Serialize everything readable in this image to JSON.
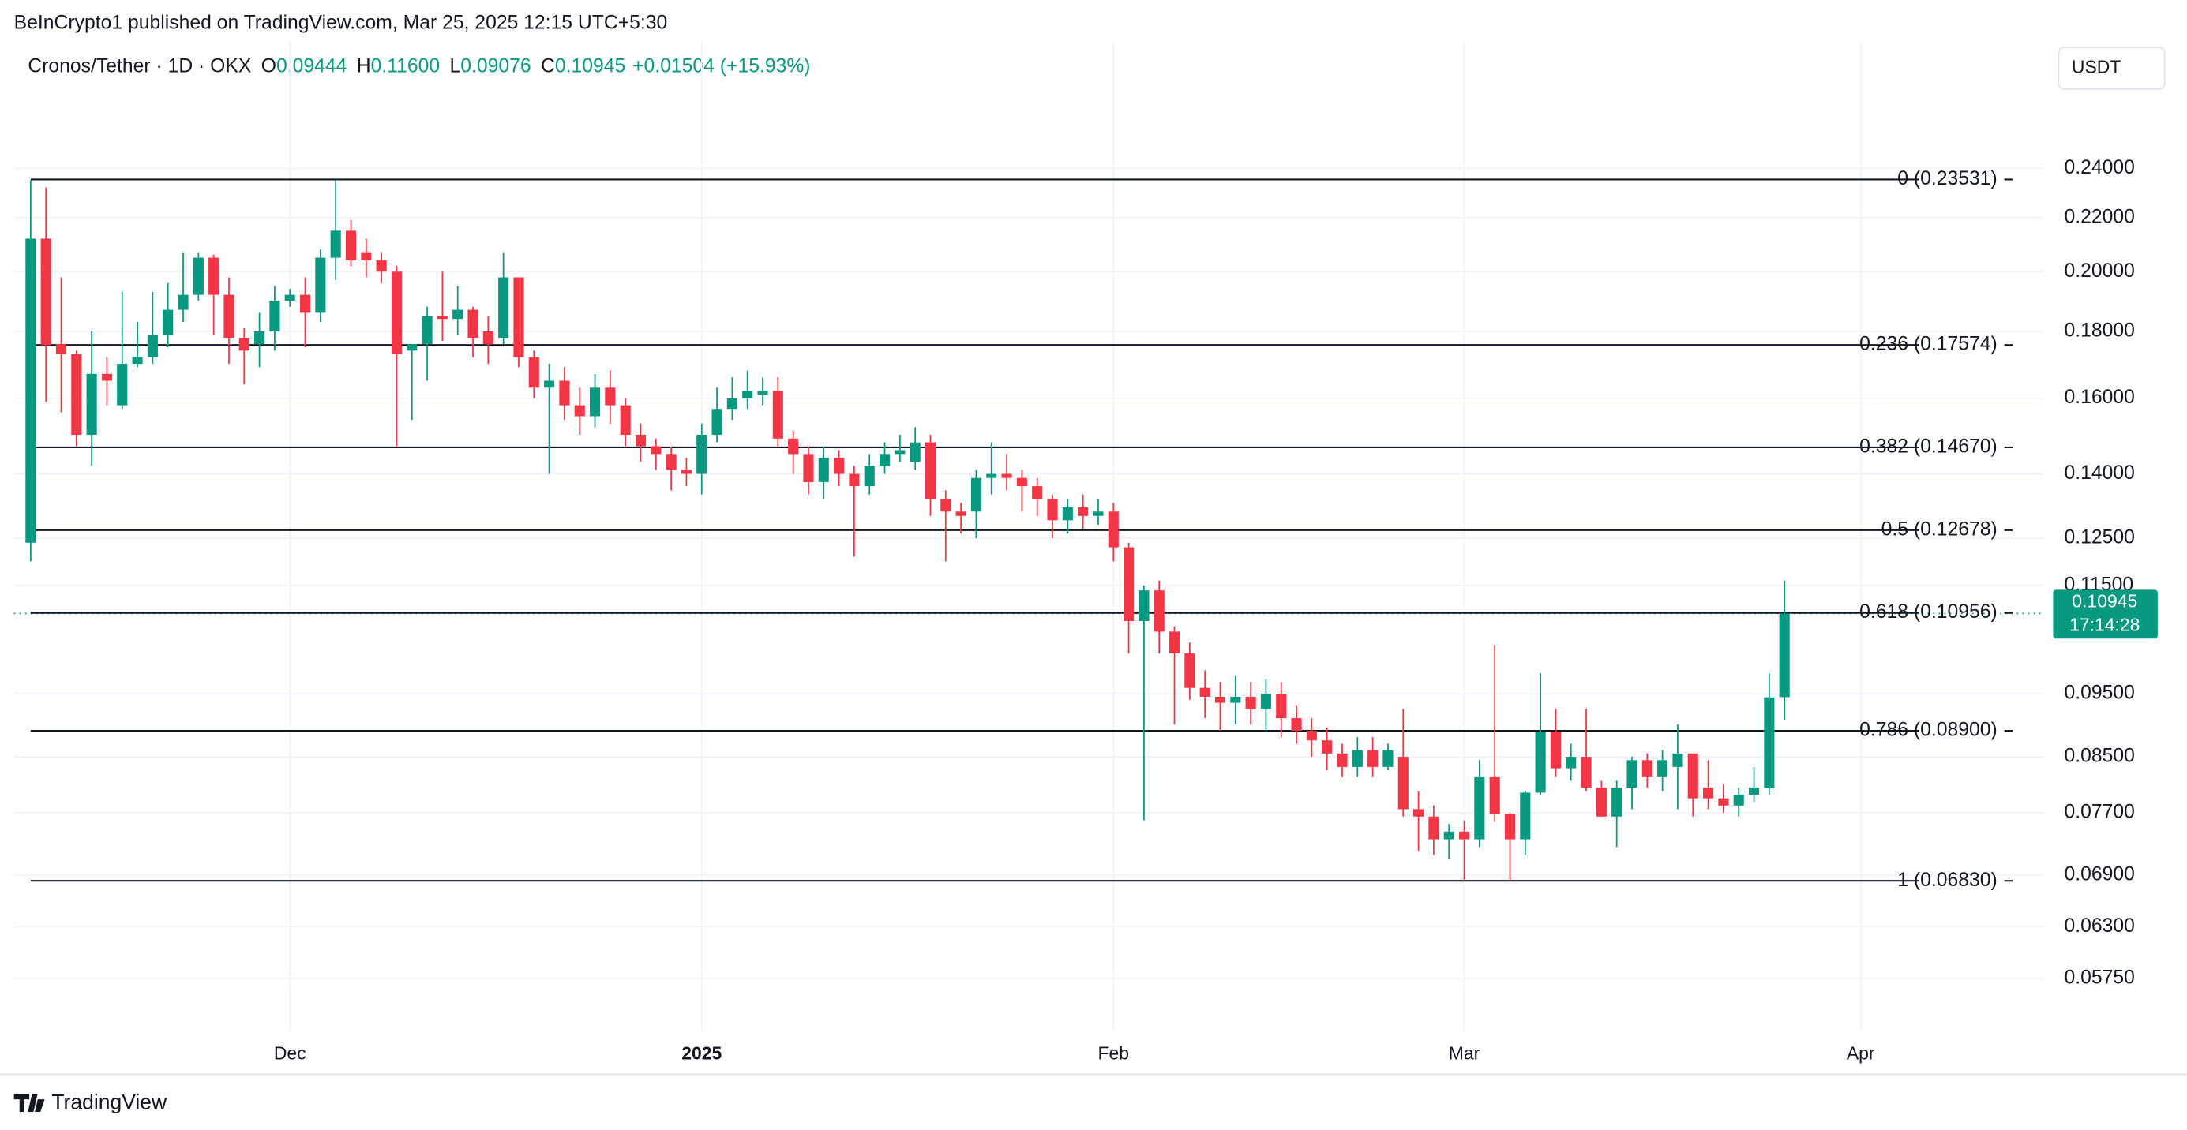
{
  "chart_data": {
    "type": "candlestick",
    "publisher_note": "BeInCrypto1 published on TradingView.com, Mar 25, 2025 12:15 UTC+5:30",
    "legend": {
      "symbol": "Cronos/Tether · 1D · OKX",
      "fields": [
        {
          "key": "O",
          "text": "0.09444"
        },
        {
          "key": "H",
          "text": "0.11600"
        },
        {
          "key": "L",
          "text": "0.09076"
        },
        {
          "key": "C",
          "text": "0.10945"
        }
      ],
      "change": "+0.01504 (+15.93%)"
    },
    "currency": "USDT",
    "countdown": "17:14:28",
    "brand": "TradingView",
    "up_color": "#089981",
    "down_color": "#f23645",
    "log_scale": true,
    "grid": true,
    "categories": [
      null,
      null,
      null,
      null,
      null,
      null,
      null,
      null,
      null,
      null,
      null,
      null,
      null,
      null,
      null,
      null,
      null,
      "Dec",
      null,
      null,
      null,
      null,
      null,
      null,
      null,
      null,
      null,
      null,
      null,
      null,
      null,
      null,
      null,
      null,
      null,
      null,
      null,
      null,
      null,
      null,
      null,
      null,
      null,
      null,
      "2025",
      null,
      null,
      null,
      null,
      null,
      null,
      null,
      null,
      null,
      null,
      null,
      null,
      null,
      null,
      null,
      null,
      null,
      null,
      null,
      null,
      null,
      null,
      null,
      null,
      null,
      null,
      "Feb",
      null,
      null,
      null,
      null,
      null,
      null,
      null,
      null,
      null,
      null,
      null,
      null,
      null,
      null,
      null,
      null,
      null,
      null,
      null,
      null,
      null,
      null,
      "Mar",
      null,
      null,
      null,
      null,
      null,
      null,
      null,
      null,
      null,
      null,
      null,
      null,
      null,
      null,
      null,
      null,
      null,
      null,
      null,
      null,
      null,
      null,
      null,
      null,
      null,
      "Apr",
      null
    ],
    "open": [
      0.124,
      0.212,
      0.176,
      0.173,
      0.15,
      0.167,
      0.158,
      0.17,
      0.172,
      0.179,
      0.187,
      0.192,
      0.205,
      0.192,
      0.178,
      0.176,
      0.18,
      0.19,
      0.192,
      0.186,
      0.205,
      0.215,
      0.207,
      0.204,
      0.2,
      0.174,
      0.176,
      0.185,
      0.184,
      0.187,
      0.18,
      0.178,
      0.198,
      0.172,
      0.163,
      0.165,
      0.158,
      0.155,
      0.163,
      0.158,
      0.15,
      0.147,
      0.145,
      0.141,
      0.14,
      0.15,
      0.157,
      0.16,
      0.161,
      0.162,
      0.149,
      0.145,
      0.138,
      0.144,
      0.14,
      0.137,
      0.142,
      0.145,
      0.143,
      0.148,
      0.134,
      0.131,
      0.131,
      0.139,
      0.14,
      0.139,
      0.137,
      0.134,
      0.129,
      0.132,
      0.13,
      0.131,
      0.123,
      0.108,
      0.114,
      0.106,
      0.102,
      0.096,
      0.0945,
      0.0935,
      0.0945,
      0.0925,
      0.095,
      0.091,
      0.089,
      0.0875,
      0.0855,
      0.0835,
      0.086,
      0.0835,
      0.085,
      0.0775,
      0.0765,
      0.0735,
      0.0745,
      0.0735,
      0.082,
      0.0768,
      0.0735,
      0.0798,
      0.0888,
      0.0833,
      0.085,
      0.0805,
      0.0765,
      0.0805,
      0.0845,
      0.082,
      0.0835,
      0.0855,
      0.0805,
      0.079,
      0.078,
      0.0795,
      0.0805,
      0.09444,
      null,
      null,
      null,
      null,
      null,
      null
    ],
    "high": [
      0.235,
      0.232,
      0.198,
      0.174,
      0.18,
      0.172,
      0.193,
      0.183,
      0.193,
      0.196,
      0.207,
      0.207,
      0.206,
      0.198,
      0.181,
      0.186,
      0.195,
      0.194,
      0.198,
      0.208,
      0.235,
      0.219,
      0.212,
      0.207,
      0.202,
      0.176,
      0.188,
      0.2,
      0.195,
      0.188,
      0.185,
      0.207,
      0.198,
      0.174,
      0.17,
      0.169,
      0.163,
      0.167,
      0.168,
      0.16,
      0.153,
      0.149,
      0.147,
      0.144,
      0.153,
      0.163,
      0.166,
      0.168,
      0.166,
      0.166,
      0.151,
      0.147,
      0.147,
      0.146,
      0.142,
      0.145,
      0.148,
      0.15,
      0.152,
      0.15,
      0.136,
      0.133,
      0.141,
      0.148,
      0.145,
      0.141,
      0.139,
      0.135,
      0.134,
      0.135,
      0.134,
      0.133,
      0.124,
      0.115,
      0.116,
      0.107,
      0.104,
      0.099,
      0.097,
      0.098,
      0.097,
      0.0975,
      0.097,
      0.093,
      0.091,
      0.0895,
      0.087,
      0.088,
      0.088,
      0.087,
      0.0925,
      0.08,
      0.078,
      0.0755,
      0.076,
      0.0845,
      0.1035,
      0.077,
      0.08,
      0.0985,
      0.0925,
      0.087,
      0.0925,
      0.0815,
      0.0815,
      0.085,
      0.0855,
      0.086,
      0.09,
      0.0855,
      0.0845,
      0.081,
      0.0805,
      0.0835,
      0.0985,
      0.116,
      null,
      null,
      null,
      null,
      null,
      null
    ],
    "low": [
      0.12,
      0.159,
      0.156,
      0.147,
      0.142,
      0.158,
      0.157,
      0.169,
      0.17,
      0.175,
      0.183,
      0.19,
      0.179,
      0.17,
      0.164,
      0.169,
      0.174,
      0.188,
      0.175,
      0.183,
      0.197,
      0.202,
      0.198,
      0.196,
      0.147,
      0.154,
      0.165,
      0.177,
      0.179,
      0.172,
      0.17,
      0.176,
      0.169,
      0.16,
      0.14,
      0.154,
      0.15,
      0.152,
      0.153,
      0.147,
      0.143,
      0.141,
      0.136,
      0.137,
      0.135,
      0.148,
      0.154,
      0.157,
      0.158,
      0.147,
      0.14,
      0.135,
      0.134,
      0.137,
      0.121,
      0.135,
      0.14,
      0.143,
      0.141,
      0.13,
      0.12,
      0.126,
      0.125,
      0.135,
      0.136,
      0.131,
      0.13,
      0.125,
      0.126,
      0.127,
      0.128,
      0.12,
      0.102,
      0.076,
      0.102,
      0.09,
      0.094,
      0.091,
      0.089,
      0.09,
      0.09,
      0.089,
      0.088,
      0.087,
      0.085,
      0.083,
      0.082,
      0.082,
      0.082,
      0.083,
      0.0765,
      0.072,
      0.0715,
      0.071,
      0.0683,
      0.0725,
      0.0758,
      0.0683,
      0.0715,
      0.0795,
      0.082,
      0.0815,
      0.08,
      0.0765,
      0.0725,
      0.0775,
      0.0805,
      0.08,
      0.0775,
      0.0765,
      0.0775,
      0.077,
      0.0765,
      0.0785,
      0.0795,
      0.09076,
      null,
      null,
      null,
      null,
      null,
      null
    ],
    "close": [
      0.212,
      0.1757,
      0.173,
      0.15,
      0.167,
      0.165,
      0.17,
      0.172,
      0.179,
      0.187,
      0.192,
      0.205,
      0.192,
      0.178,
      0.174,
      0.18,
      0.19,
      0.192,
      0.186,
      0.205,
      0.215,
      0.204,
      0.204,
      0.2,
      0.173,
      0.176,
      0.185,
      0.184,
      0.187,
      0.178,
      0.176,
      0.198,
      0.172,
      0.163,
      0.165,
      0.158,
      0.155,
      0.163,
      0.158,
      0.15,
      0.147,
      0.145,
      0.141,
      0.14,
      0.15,
      0.157,
      0.16,
      0.162,
      0.162,
      0.149,
      0.145,
      0.138,
      0.144,
      0.14,
      0.137,
      0.142,
      0.145,
      0.146,
      0.148,
      0.134,
      0.131,
      0.13,
      0.139,
      0.14,
      0.139,
      0.137,
      0.134,
      0.129,
      0.132,
      0.13,
      0.131,
      0.123,
      0.108,
      0.114,
      0.106,
      0.102,
      0.096,
      0.0945,
      0.0935,
      0.0945,
      0.0925,
      0.095,
      0.091,
      0.089,
      0.0875,
      0.0855,
      0.0835,
      0.086,
      0.0835,
      0.086,
      0.0775,
      0.0765,
      0.0735,
      0.0745,
      0.0735,
      0.082,
      0.0768,
      0.0735,
      0.0798,
      0.0888,
      0.0833,
      0.085,
      0.0805,
      0.0765,
      0.0805,
      0.0845,
      0.082,
      0.0845,
      0.0855,
      0.079,
      0.079,
      0.078,
      0.0795,
      0.0805,
      0.0944,
      0.10945,
      null,
      null,
      null,
      null,
      null,
      null
    ],
    "ylim": [
      0.0524,
      0.3
    ],
    "yticks": [
      {
        "value": 0.24,
        "label": "0.24000"
      },
      {
        "value": 0.22,
        "label": "0.22000"
      },
      {
        "value": 0.2,
        "label": "0.20000"
      },
      {
        "value": 0.18,
        "label": "0.18000"
      },
      {
        "value": 0.16,
        "label": "0.16000"
      },
      {
        "value": 0.14,
        "label": "0.14000"
      },
      {
        "value": 0.125,
        "label": "0.12500"
      },
      {
        "value": 0.115,
        "label": "0.11500"
      },
      {
        "value": 0.095,
        "label": "0.09500"
      },
      {
        "value": 0.085,
        "label": "0.08500"
      },
      {
        "value": 0.077,
        "label": "0.07700"
      },
      {
        "value": 0.069,
        "label": "0.06900"
      },
      {
        "value": 0.063,
        "label": "0.06300"
      },
      {
        "value": 0.0575,
        "label": "0.05750"
      }
    ],
    "fib_levels": [
      {
        "value": 0.23531,
        "label": "0 (0.23531)"
      },
      {
        "value": 0.17574,
        "label": "0.236 (0.17574)"
      },
      {
        "value": 0.1467,
        "label": "0.382 (0.14670)"
      },
      {
        "value": 0.12678,
        "label": "0.5 (0.12678)"
      },
      {
        "value": 0.10956,
        "label": "0.618 (0.10956)"
      },
      {
        "value": 0.089,
        "label": "0.786 (0.08900)"
      },
      {
        "value": 0.0683,
        "label": "1 (0.06830)"
      }
    ]
  }
}
